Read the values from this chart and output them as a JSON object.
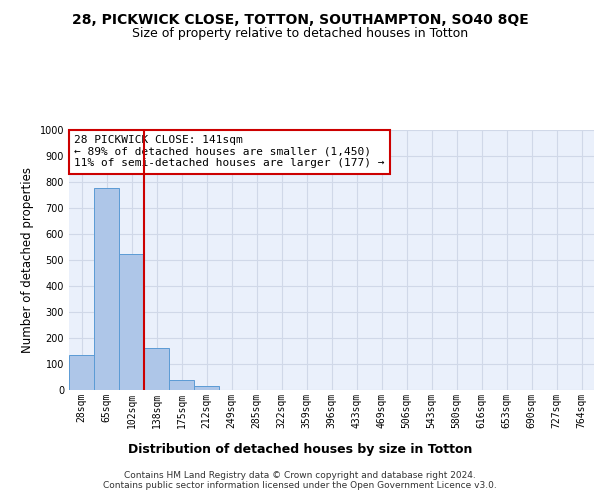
{
  "title": "28, PICKWICK CLOSE, TOTTON, SOUTHAMPTON, SO40 8QE",
  "subtitle": "Size of property relative to detached houses in Totton",
  "xlabel": "Distribution of detached houses by size in Totton",
  "ylabel": "Number of detached properties",
  "bar_values": [
    133,
    778,
    525,
    160,
    38,
    15,
    0,
    0,
    0,
    0,
    0,
    0,
    0,
    0,
    0,
    0,
    0,
    0,
    0,
    0,
    0
  ],
  "categories": [
    "28sqm",
    "65sqm",
    "102sqm",
    "138sqm",
    "175sqm",
    "212sqm",
    "249sqm",
    "285sqm",
    "322sqm",
    "359sqm",
    "396sqm",
    "433sqm",
    "469sqm",
    "506sqm",
    "543sqm",
    "580sqm",
    "616sqm",
    "653sqm",
    "690sqm",
    "727sqm",
    "764sqm"
  ],
  "bar_color": "#aec6e8",
  "bar_edge_color": "#5b9bd5",
  "grid_color": "#d0d8e8",
  "background_color": "#eaf0fb",
  "vline_index": 3,
  "vline_color": "#cc0000",
  "annotation_text": "28 PICKWICK CLOSE: 141sqm\n← 89% of detached houses are smaller (1,450)\n11% of semi-detached houses are larger (177) →",
  "annotation_box_color": "#ffffff",
  "annotation_box_edge": "#cc0000",
  "ylim": [
    0,
    1000
  ],
  "yticks": [
    0,
    100,
    200,
    300,
    400,
    500,
    600,
    700,
    800,
    900,
    1000
  ],
  "footer_text": "Contains HM Land Registry data © Crown copyright and database right 2024.\nContains public sector information licensed under the Open Government Licence v3.0.",
  "title_fontsize": 10,
  "subtitle_fontsize": 9,
  "annotation_fontsize": 8,
  "tick_fontsize": 7,
  "ylabel_fontsize": 8.5,
  "xlabel_fontsize": 9,
  "footer_fontsize": 6.5
}
